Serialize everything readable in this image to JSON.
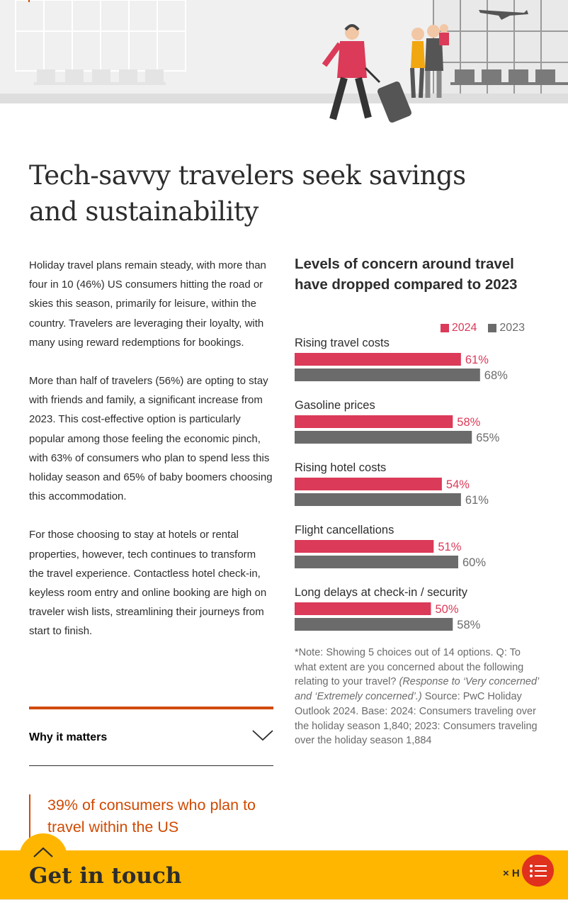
{
  "article": {
    "title": "Tech-savvy travelers seek savings and sustainability",
    "paragraphs": [
      "Holiday travel plans remain steady, with more than four in 10 (46%) US consumers hitting the road or skies this season, primarily for leisure, within the country. Travelers are leveraging their loyalty, with many using reward redemptions for bookings.",
      "More than half of travelers (56%) are opting to stay with friends and family, a significant increase from 2023. This cost-effective option is particularly popular among those feeling the economic pinch, with 63% of consumers who plan to spend less this holiday season and 65% of baby boomers choosing this accommodation.",
      "For those choosing to stay at hotels or rental properties, however, tech continues to transform the travel experience. Contactless hotel check-in, keyless room entry and online booking are high on traveler wish lists, streamlining their journeys from start to finish."
    ],
    "why_label": "Why it matters",
    "quote": "39% of consumers who plan to travel within the US"
  },
  "chart_data": {
    "type": "bar",
    "orientation": "horizontal",
    "title": "Levels of concern around travel have dropped compared to 2023",
    "categories": [
      "Rising travel costs",
      "Gasoline prices",
      "Rising hotel costs",
      "Flight cancellations",
      "Long delays at check-in / security"
    ],
    "series": [
      {
        "name": "2024",
        "values": [
          61,
          58,
          54,
          51,
          50
        ],
        "color": "#db3a58"
      },
      {
        "name": "2023",
        "values": [
          68,
          65,
          61,
          60,
          58
        ],
        "color": "#6b6b6b"
      }
    ],
    "value_suffix": "%",
    "legend_position": "top-right"
  },
  "note": {
    "prefix": "*Note: Showing 5 choices out of 14 options. Q: To what extent are you concerned about the following relating to your travel? ",
    "italic": "(Response to ‘Very concerned’ and ‘Extremely concerned’.)",
    "suffix": " Source: PwC Holiday Outlook 2024. Base: 2024: Consumers traveling over the holiday season 1,840; 2023: Consumers traveling over the holiday season 1,884"
  },
  "cta": {
    "title": "Get in touch",
    "hide_label": "× H"
  },
  "colors": {
    "accent_orange": "#d04a02",
    "cta_yellow": "#ffb600",
    "toc_red": "#e0301e"
  }
}
